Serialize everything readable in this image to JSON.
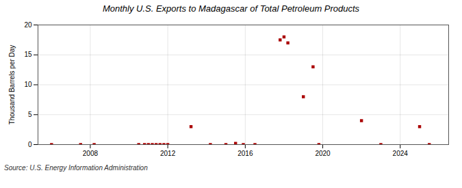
{
  "chart_data": {
    "type": "scatter",
    "title": "Monthly U.S. Exports to Madagascar of Total Petroleum Products",
    "ylabel": "Thousand Barrels per Day",
    "source": "Source: U.S. Energy Information Administration",
    "x": [
      2006.0,
      2007.5,
      2008.2,
      2010.5,
      2010.8,
      2011.0,
      2011.2,
      2011.4,
      2011.6,
      2011.8,
      2012.0,
      2013.2,
      2014.2,
      2015.0,
      2015.5,
      2015.9,
      2016.5,
      2017.8,
      2018.0,
      2018.2,
      2019.0,
      2019.5,
      2019.8,
      2022.0,
      2023.0,
      2025.0,
      2025.5
    ],
    "values": [
      0.0,
      0.0,
      0.0,
      0.0,
      0.0,
      0.0,
      0.0,
      0.0,
      0.0,
      0.0,
      0.0,
      3.0,
      0.0,
      0.0,
      0.2,
      0.0,
      0.0,
      17.5,
      18.0,
      17.0,
      8.0,
      13.0,
      0.0,
      4.0,
      0.0,
      3.0,
      0.0
    ],
    "color": "#aa0000",
    "marker": "square",
    "xlim": [
      2005.3,
      2026.5
    ],
    "xticks": [
      2008,
      2012,
      2016,
      2020,
      2024
    ],
    "ylim": [
      0,
      20
    ],
    "yticks": [
      0,
      5,
      10,
      15,
      20
    ],
    "grid": true
  }
}
